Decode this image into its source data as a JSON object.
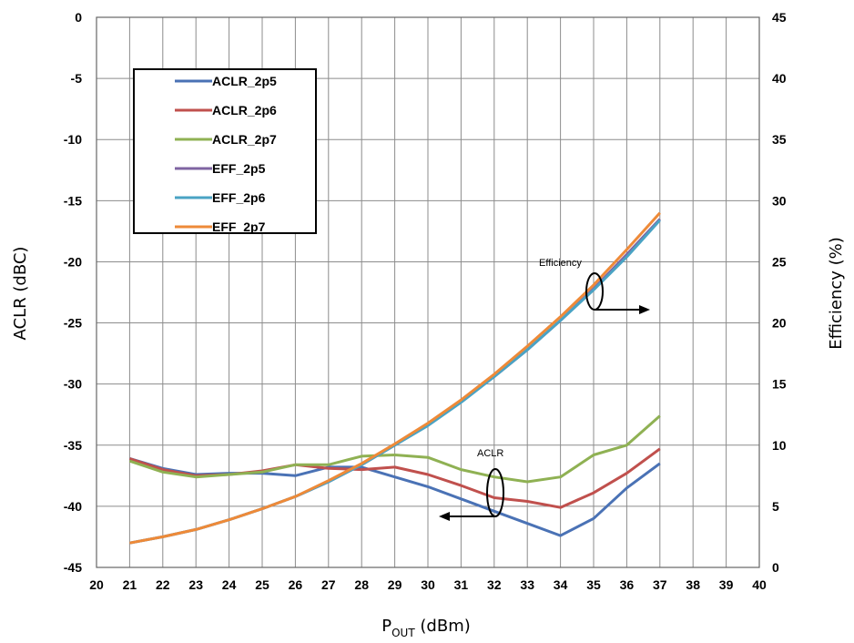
{
  "chart_data": {
    "type": "line",
    "xlabel": "P",
    "xlabel_sub": "OUT",
    "xlabel_unit": "(dBm)",
    "ylabel_left": "ACLR (dBC)",
    "ylabel_right": "Efficiency (%)",
    "xlim": [
      20,
      40
    ],
    "ylim_left": [
      -45,
      0
    ],
    "ylim_right": [
      0,
      45
    ],
    "x_ticks": [
      "20",
      "21",
      "22",
      "23",
      "24",
      "25",
      "26",
      "27",
      "28",
      "29",
      "30",
      "31",
      "32",
      "33",
      "34",
      "35",
      "36",
      "37",
      "38",
      "39",
      "40"
    ],
    "y_left_ticks": [
      "0",
      "-5",
      "-10",
      "-15",
      "-20",
      "-25",
      "-30",
      "-35",
      "-40",
      "-45"
    ],
    "y_right_ticks": [
      "45",
      "40",
      "35",
      "30",
      "25",
      "20",
      "15",
      "10",
      "5",
      "0"
    ],
    "grid": true,
    "legend_position": "top-left",
    "x": [
      21,
      22,
      23,
      24,
      25,
      26,
      27,
      28,
      29,
      30,
      31,
      32,
      33,
      34,
      35,
      36,
      37
    ],
    "series": [
      {
        "name": "ACLR_2p5",
        "axis": "left",
        "color": "#4a72b5",
        "values": [
          -36.1,
          -36.9,
          -37.4,
          -37.3,
          -37.3,
          -37.5,
          -36.8,
          -36.8,
          -37.6,
          -38.4,
          -39.4,
          -40.4,
          -41.4,
          -42.4,
          -41.0,
          -38.5,
          -36.5
        ]
      },
      {
        "name": "ACLR_2p6",
        "axis": "left",
        "color": "#c0504d",
        "values": [
          -36.1,
          -37.0,
          -37.5,
          -37.4,
          -37.1,
          -36.6,
          -36.9,
          -37.0,
          -36.8,
          -37.4,
          -38.3,
          -39.3,
          -39.6,
          -40.1,
          -38.9,
          -37.3,
          -35.3
        ]
      },
      {
        "name": "ACLR_2p7",
        "axis": "left",
        "color": "#8fb153",
        "values": [
          -36.3,
          -37.2,
          -37.6,
          -37.4,
          -37.2,
          -36.6,
          -36.6,
          -35.9,
          -35.8,
          -36.0,
          -37.0,
          -37.6,
          -38.0,
          -37.6,
          -35.8,
          -35.0,
          -32.6
        ]
      },
      {
        "name": "EFF_2p5",
        "axis": "right",
        "color": "#7f64a2",
        "values": [
          2.0,
          2.5,
          3.1,
          3.9,
          4.8,
          5.8,
          7.0,
          8.4,
          10.0,
          11.7,
          13.6,
          15.6,
          17.8,
          20.2,
          22.8,
          25.6,
          28.5
        ]
      },
      {
        "name": "EFF_2p6",
        "axis": "right",
        "color": "#4aa3c4",
        "values": [
          2.0,
          2.5,
          3.1,
          3.9,
          4.8,
          5.8,
          7.0,
          8.4,
          10.0,
          11.6,
          13.5,
          15.6,
          17.8,
          20.2,
          22.7,
          25.4,
          28.4
        ]
      },
      {
        "name": "EFF_2p7",
        "axis": "right",
        "color": "#ee8a38",
        "values": [
          2.0,
          2.5,
          3.1,
          3.9,
          4.8,
          5.8,
          7.1,
          8.5,
          10.1,
          11.8,
          13.7,
          15.8,
          18.1,
          20.5,
          23.1,
          26.0,
          29.0
        ]
      }
    ],
    "annotations": [
      {
        "text": "Efficiency",
        "arrow": "right"
      },
      {
        "text": "ACLR",
        "arrow": "left"
      }
    ]
  }
}
